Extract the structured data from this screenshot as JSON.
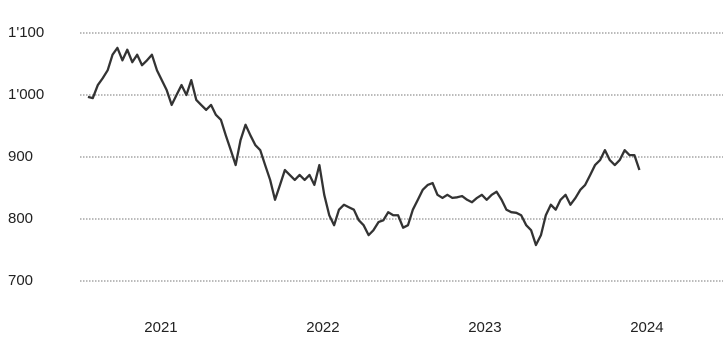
{
  "chart_data": {
    "type": "line",
    "x": [
      2021.049,
      2021.079,
      2021.11,
      2021.14,
      2021.171,
      2021.201,
      2021.231,
      2021.262,
      2021.292,
      2021.323,
      2021.353,
      2021.383,
      2021.414,
      2021.444,
      2021.475,
      2021.505,
      2021.535,
      2021.566,
      2021.596,
      2021.627,
      2021.657,
      2021.687,
      2021.718,
      2021.748,
      2021.779,
      2021.809,
      2021.839,
      2021.87,
      2021.9,
      2021.931,
      2021.961,
      2021.991,
      2022.022,
      2022.052,
      2022.083,
      2022.113,
      2022.143,
      2022.174,
      2022.204,
      2022.235,
      2022.265,
      2022.295,
      2022.326,
      2022.356,
      2022.387,
      2022.417,
      2022.447,
      2022.478,
      2022.508,
      2022.539,
      2022.569,
      2022.599,
      2022.63,
      2022.66,
      2022.691,
      2022.721,
      2022.751,
      2022.782,
      2022.812,
      2022.843,
      2022.873,
      2022.903,
      2022.934,
      2022.964,
      2022.995,
      2023.025,
      2023.055,
      2023.086,
      2023.116,
      2023.147,
      2023.177,
      2023.207,
      2023.238,
      2023.268,
      2023.299,
      2023.329,
      2023.359,
      2023.39,
      2023.42,
      2023.451,
      2023.481,
      2023.511,
      2023.542,
      2023.572,
      2023.603,
      2023.633,
      2023.663,
      2023.694,
      2023.724,
      2023.755,
      2023.785,
      2023.815,
      2023.846,
      2023.876,
      2023.907,
      2023.937,
      2023.967,
      2023.998,
      2024.028,
      2024.059,
      2024.089,
      2024.119,
      2024.15,
      2024.18,
      2024.211,
      2024.241,
      2024.271,
      2024.302,
      2024.332,
      2024.363,
      2024.393,
      2024.423,
      2024.454
    ],
    "series": [
      {
        "color": "#333333",
        "values": [
          997,
          995,
          1016,
          1027,
          1040,
          1065,
          1076,
          1056,
          1073,
          1053,
          1065,
          1048,
          1056,
          1065,
          1040,
          1024,
          1008,
          984,
          1000,
          1016,
          1000,
          1024,
          992,
          984,
          976,
          984,
          968,
          960,
          935,
          911,
          887,
          927,
          952,
          935,
          919,
          911,
          887,
          863,
          831,
          855,
          879,
          871,
          863,
          871,
          863,
          871,
          855,
          887,
          839,
          806,
          790,
          815,
          823,
          819,
          815,
          798,
          790,
          774,
          782,
          795,
          798,
          811,
          806,
          806,
          786,
          790,
          815,
          831,
          847,
          855,
          858,
          839,
          834,
          839,
          834,
          835,
          837,
          831,
          827,
          834,
          839,
          831,
          839,
          844,
          831,
          815,
          811,
          810,
          806,
          790,
          782,
          758,
          774,
          806,
          823,
          815,
          831,
          839,
          823,
          834,
          847,
          855,
          871,
          887,
          895,
          911,
          895,
          887,
          895,
          911,
          903,
          903,
          879
        ]
      }
    ],
    "xlim": [
      2021,
      2024.97
    ],
    "xticks": [
      {
        "value": 2021.5,
        "label": "2021"
      },
      {
        "value": 2022.5,
        "label": "2022"
      },
      {
        "value": 2023.5,
        "label": "2023"
      },
      {
        "value": 2024.5,
        "label": "2024"
      }
    ],
    "ylim": [
      700,
      1100
    ],
    "yticks": [
      700,
      800,
      900,
      {
        "value": 1000,
        "label": "1'000"
      },
      {
        "value": 1100,
        "label": "1'100"
      }
    ],
    "grid": true
  }
}
